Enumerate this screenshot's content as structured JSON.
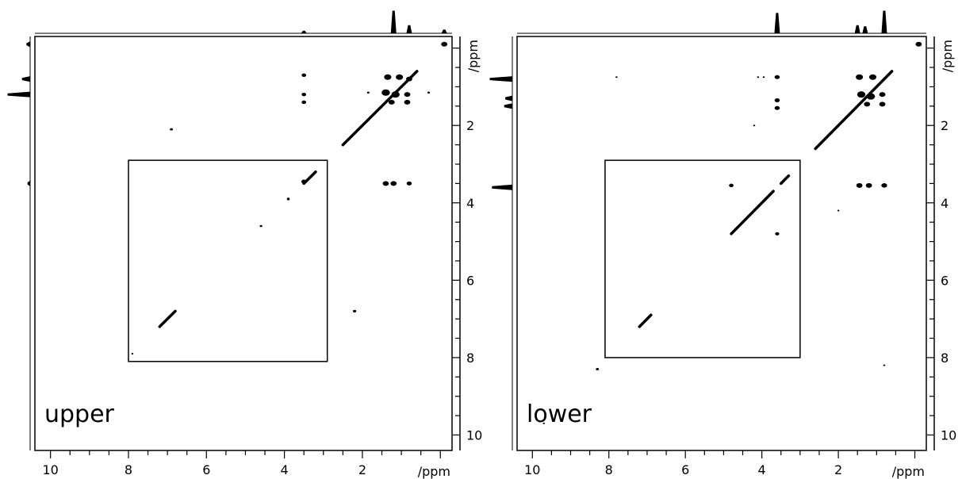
{
  "chart_data": [
    {
      "type": "scatter",
      "panel_label": "upper",
      "xlabel": "/ppm",
      "ylabel": "/ppm",
      "xlim": [
        10.4,
        -0.3
      ],
      "ylim": [
        -0.3,
        10.4
      ],
      "x_ticks": [
        "10",
        "8",
        "6",
        "4",
        "2"
      ],
      "y_ticks": [
        "2",
        "4",
        "6",
        "8",
        "10"
      ],
      "inset_box_ppm": {
        "x": [
          8.0,
          2.9
        ],
        "y": [
          2.9,
          8.1
        ]
      },
      "projection_peaks": [
        {
          "shift": 3.5,
          "height": 0.1
        },
        {
          "shift": 1.2,
          "height": 1.0
        },
        {
          "shift": 0.8,
          "height": 0.35
        },
        {
          "shift": -0.1,
          "height": 0.15
        }
      ],
      "diagonal_segments": [
        [
          2.5,
          0.6
        ],
        [
          3.2,
          3.5
        ],
        [
          3.9,
          3.9
        ],
        [
          7.2,
          6.8
        ]
      ],
      "peaks": [
        {
          "x": -0.1,
          "y": -0.1,
          "r": 3.0
        },
        {
          "x": 3.5,
          "y": 0.7,
          "r": 2.2
        },
        {
          "x": 3.5,
          "y": 1.2,
          "r": 2.2
        },
        {
          "x": 3.5,
          "y": 1.4,
          "r": 2.2
        },
        {
          "x": 1.35,
          "y": 0.75,
          "r": 3.5
        },
        {
          "x": 1.05,
          "y": 0.75,
          "r": 3.5
        },
        {
          "x": 0.8,
          "y": 0.8,
          "r": 3.0
        },
        {
          "x": 1.4,
          "y": 1.15,
          "r": 4.0
        },
        {
          "x": 1.15,
          "y": 1.2,
          "r": 4.0
        },
        {
          "x": 0.85,
          "y": 1.2,
          "r": 3.0
        },
        {
          "x": 0.85,
          "y": 1.4,
          "r": 3.0
        },
        {
          "x": 1.25,
          "y": 1.4,
          "r": 3.0
        },
        {
          "x": 0.3,
          "y": 1.15,
          "r": 1.2
        },
        {
          "x": 1.85,
          "y": 1.15,
          "r": 1.2
        },
        {
          "x": 6.9,
          "y": 2.1,
          "r": 1.5
        },
        {
          "x": 1.4,
          "y": 3.5,
          "r": 3.0
        },
        {
          "x": 1.2,
          "y": 3.5,
          "r": 3.0
        },
        {
          "x": 0.8,
          "y": 3.5,
          "r": 2.5
        },
        {
          "x": 3.5,
          "y": 3.45,
          "r": 2.5
        },
        {
          "x": 4.6,
          "y": 4.6,
          "r": 1.3
        },
        {
          "x": 2.2,
          "y": 6.8,
          "r": 1.6
        },
        {
          "x": 7.9,
          "y": 7.9,
          "r": 1.0
        }
      ]
    },
    {
      "type": "scatter",
      "panel_label": "lower",
      "xlabel": "/ppm",
      "ylabel": "/ppm",
      "xlim": [
        10.4,
        -0.3
      ],
      "ylim": [
        -0.3,
        10.4
      ],
      "x_ticks": [
        "10",
        "8",
        "6",
        "4",
        "2"
      ],
      "y_ticks": [
        "2",
        "4",
        "6",
        "8",
        "10"
      ],
      "inset_box_ppm": {
        "x": [
          8.1,
          3.0
        ],
        "y": [
          2.9,
          8.0
        ]
      },
      "projection_peaks": [
        {
          "shift": 3.6,
          "height": 0.9
        },
        {
          "shift": 1.5,
          "height": 0.35
        },
        {
          "shift": 1.3,
          "height": 0.3
        },
        {
          "shift": 0.8,
          "height": 1.0
        }
      ],
      "diagonal_segments": [
        [
          2.6,
          0.6
        ],
        [
          3.5,
          3.3
        ],
        [
          4.8,
          3.7
        ],
        [
          7.2,
          6.9
        ]
      ],
      "peaks": [
        {
          "x": -0.1,
          "y": -0.1,
          "r": 3.0
        },
        {
          "x": 3.6,
          "y": 0.75,
          "r": 2.5
        },
        {
          "x": 3.6,
          "y": 1.35,
          "r": 2.5
        },
        {
          "x": 3.6,
          "y": 1.55,
          "r": 2.5
        },
        {
          "x": 1.45,
          "y": 0.75,
          "r": 3.5
        },
        {
          "x": 1.1,
          "y": 0.75,
          "r": 3.5
        },
        {
          "x": 1.4,
          "y": 1.2,
          "r": 4.0
        },
        {
          "x": 1.15,
          "y": 1.25,
          "r": 4.0
        },
        {
          "x": 0.85,
          "y": 1.2,
          "r": 3.0
        },
        {
          "x": 0.85,
          "y": 1.45,
          "r": 3.0
        },
        {
          "x": 1.25,
          "y": 1.45,
          "r": 3.0
        },
        {
          "x": 7.8,
          "y": 0.75,
          "r": 1.0
        },
        {
          "x": 4.1,
          "y": 0.75,
          "r": 1.0
        },
        {
          "x": 3.95,
          "y": 0.75,
          "r": 1.0
        },
        {
          "x": 4.2,
          "y": 2.0,
          "r": 1.0
        },
        {
          "x": 1.45,
          "y": 3.55,
          "r": 3.0
        },
        {
          "x": 1.2,
          "y": 3.55,
          "r": 3.0
        },
        {
          "x": 0.8,
          "y": 3.55,
          "r": 2.8
        },
        {
          "x": 4.8,
          "y": 3.55,
          "r": 2.2
        },
        {
          "x": 3.6,
          "y": 4.8,
          "r": 2.0
        },
        {
          "x": 2.0,
          "y": 4.2,
          "r": 1.0
        },
        {
          "x": 0.8,
          "y": 8.2,
          "r": 1.0
        },
        {
          "x": 8.3,
          "y": 8.3,
          "r": 1.5
        },
        {
          "x": 9.7,
          "y": 9.7,
          "r": 1.0
        }
      ]
    }
  ]
}
